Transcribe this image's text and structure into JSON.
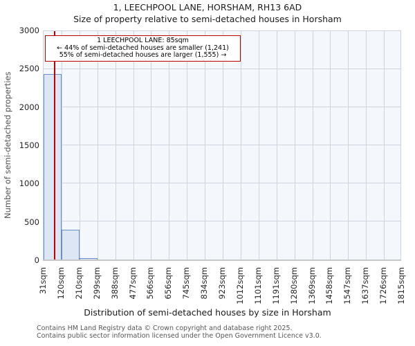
{
  "header": {
    "title": "1, LEECHPOOL LANE, HORSHAM, RH13 6AD",
    "subtitle": "Size of property relative to semi-detached houses in Horsham"
  },
  "annotation": {
    "line1": "1 LEECHPOOL LANE: 85sqm",
    "line2": "← 44% of semi-detached houses are smaller (1,241)",
    "line3": "55% of semi-detached houses are larger (1,555) →"
  },
  "chart_data": {
    "type": "bar",
    "title": "1, LEECHPOOL LANE, HORSHAM, RH13 6AD",
    "subtitle": "Size of property relative to semi-detached houses in Horsham",
    "xlabel": "Distribution of semi-detached houses by size in Horsham",
    "ylabel": "Number of semi-detached properties",
    "ylim": [
      0,
      3000
    ],
    "y_ticks": [
      0,
      500,
      1000,
      1500,
      2000,
      2500,
      3000
    ],
    "x_tick_labels": [
      "31sqm",
      "120sqm",
      "210sqm",
      "299sqm",
      "388sqm",
      "477sqm",
      "566sqm",
      "656sqm",
      "745sqm",
      "834sqm",
      "923sqm",
      "1012sqm",
      "1101sqm",
      "1191sqm",
      "1280sqm",
      "1369sqm",
      "1458sqm",
      "1547sqm",
      "1637sqm",
      "1726sqm",
      "1815sqm"
    ],
    "bin_range_sqm": [
      31,
      1815
    ],
    "values": [
      2440,
      390,
      20,
      0,
      0,
      0,
      0,
      0,
      0,
      0,
      0,
      0,
      0,
      0,
      0,
      0,
      0,
      0,
      0,
      0
    ],
    "grid": true,
    "legend": null,
    "marker": {
      "label": "1 LEECHPOOL LANE",
      "x_sqm": 85
    },
    "colors": {
      "bar_fill": "#dde6f4",
      "bar_border": "#6590cb",
      "marker_line": "#c00000",
      "annotation_border": "#bb0000",
      "plot_bg": "#f4f7fc",
      "grid": "#cdd4df"
    }
  },
  "footer": {
    "line1": "Contains HM Land Registry data © Crown copyright and database right 2025.",
    "line2": "Contains public sector information licensed under the Open Government Licence v3.0."
  }
}
